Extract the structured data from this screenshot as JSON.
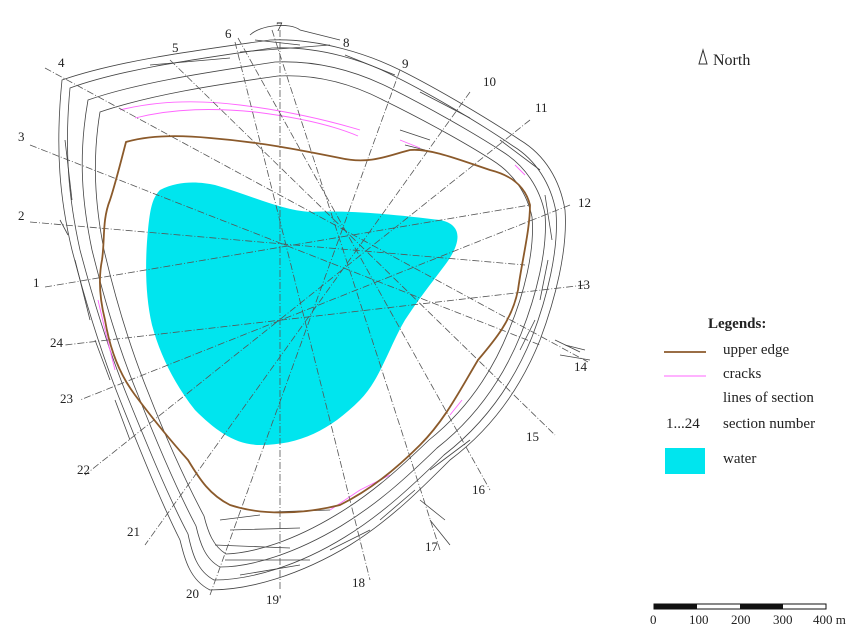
{
  "north": {
    "label": "North",
    "icon": "north-arrow-icon"
  },
  "legend": {
    "title": "Legends:",
    "items": [
      {
        "symbol": "line",
        "color": "#8b5a2b",
        "label": "upper edge"
      },
      {
        "symbol": "line",
        "color": "#ff66ff",
        "label": "cracks"
      },
      {
        "symbol": "dashed-line",
        "color": "#555555",
        "label": "lines of section"
      },
      {
        "symbol": "text",
        "symbol_text": "1...24",
        "label": "section number"
      },
      {
        "symbol": "box",
        "color": "#00e5ee",
        "label": "water"
      }
    ]
  },
  "scale_bar": {
    "ticks": [
      "0",
      "100",
      "200",
      "300",
      "400 m"
    ]
  },
  "sections": [
    "1",
    "2",
    "3",
    "4",
    "5",
    "6",
    "7",
    "8",
    "9",
    "10",
    "11",
    "12",
    "13",
    "14",
    "15",
    "16",
    "17",
    "18",
    "19'",
    "20",
    "21",
    "22",
    "23",
    "24"
  ],
  "colors": {
    "water": "#00e5ee",
    "upper_edge": "#8b5a2b",
    "cracks": "#ff66ff",
    "section_line": "#555555",
    "contour": "#444444"
  }
}
